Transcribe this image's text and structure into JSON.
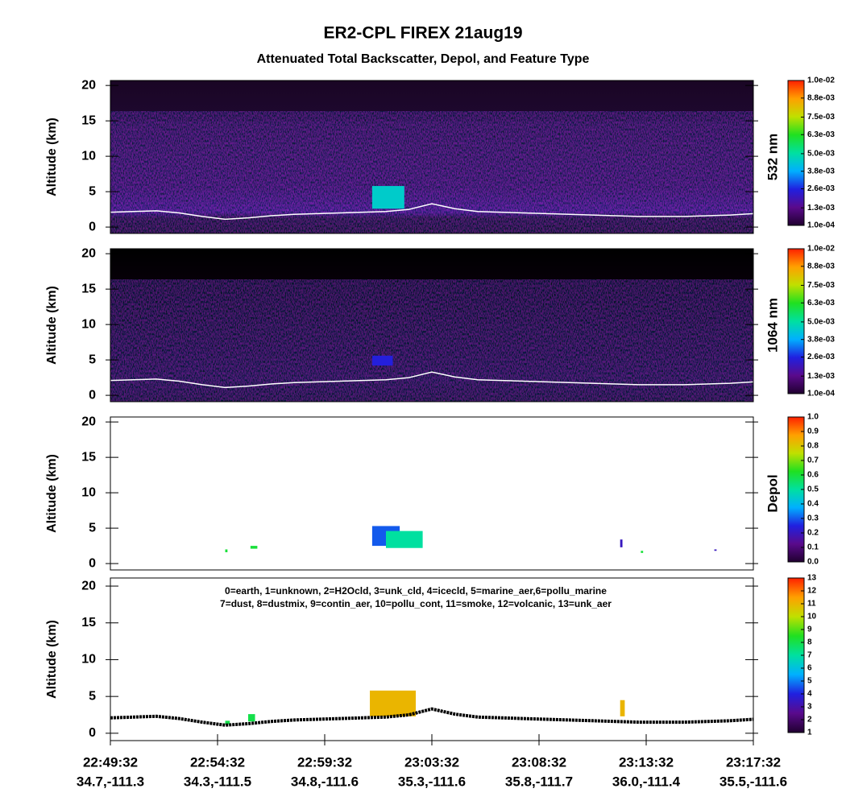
{
  "title": "ER2-CPL FIREX 21aug19",
  "subtitle": "Attenuated Total Backscatter, Depol, and Feature Type",
  "colormap": [
    "#200030",
    "#5a0a8c",
    "#2020e0",
    "#00b0ff",
    "#00e0a0",
    "#20e020",
    "#c0e000",
    "#ffa000",
    "#ff2000"
  ],
  "chart_data": [
    {
      "type": "curtain",
      "y_label": "Altitude (km)",
      "colorbar_label": "532 nm",
      "xlim": [
        0,
        28
      ],
      "ylim": [
        -0.9,
        20.7
      ],
      "yticks": [
        0,
        5,
        10,
        15,
        20
      ],
      "clim": [
        0.0001,
        0.01
      ],
      "cticks": [
        {
          "value": 0.0001,
          "label": "1.0e-04"
        },
        {
          "value": 0.0013,
          "label": "1.3e-03"
        },
        {
          "value": 0.0026,
          "label": "2.6e-03"
        },
        {
          "value": 0.0038,
          "label": "3.8e-03"
        },
        {
          "value": 0.005,
          "label": "5.0e-03"
        },
        {
          "value": 0.0063,
          "label": "6.3e-03"
        },
        {
          "value": 0.0075,
          "label": "7.5e-03"
        },
        {
          "value": 0.0088,
          "label": "8.8e-03"
        },
        {
          "value": 0.01,
          "label": "1.0e-02"
        }
      ],
      "surface": {
        "color": "#ffffff",
        "values": [
          2.1,
          2.2,
          2.3,
          2.0,
          1.5,
          1.1,
          1.3,
          1.6,
          1.8,
          1.9,
          2.0,
          2.1,
          2.2,
          2.5,
          3.3,
          2.6,
          2.2,
          2.1,
          2.0,
          1.9,
          1.8,
          1.7,
          1.6,
          1.5,
          1.5,
          1.5,
          1.6,
          1.7,
          1.9
        ]
      },
      "features": [
        {
          "x": [
            11.4,
            12.8
          ],
          "altitude": [
            2.6,
            5.8
          ],
          "value": 0.0045
        }
      ]
    },
    {
      "type": "curtain",
      "y_label": "Altitude (km)",
      "colorbar_label": "1064 nm",
      "xlim": [
        0,
        28
      ],
      "ylim": [
        -0.9,
        20.7
      ],
      "yticks": [
        0,
        5,
        10,
        15,
        20
      ],
      "clim": [
        0.0001,
        0.01
      ],
      "cticks": [
        {
          "value": 0.0001,
          "label": "1.0e-04"
        },
        {
          "value": 0.0013,
          "label": "1.3e-03"
        },
        {
          "value": 0.0026,
          "label": "2.6e-03"
        },
        {
          "value": 0.0038,
          "label": "3.8e-03"
        },
        {
          "value": 0.005,
          "label": "5.0e-03"
        },
        {
          "value": 0.0063,
          "label": "6.3e-03"
        },
        {
          "value": 0.0075,
          "label": "7.5e-03"
        },
        {
          "value": 0.0088,
          "label": "8.8e-03"
        },
        {
          "value": 0.01,
          "label": "1.0e-02"
        }
      ],
      "surface": {
        "color": "#ffffff",
        "values": [
          2.1,
          2.2,
          2.3,
          2.0,
          1.5,
          1.1,
          1.3,
          1.6,
          1.8,
          1.9,
          2.0,
          2.1,
          2.2,
          2.5,
          3.3,
          2.6,
          2.2,
          2.1,
          2.0,
          1.9,
          1.8,
          1.7,
          1.6,
          1.5,
          1.5,
          1.5,
          1.6,
          1.7,
          1.9
        ]
      },
      "features": [
        {
          "x": [
            11.4,
            12.3
          ],
          "altitude": [
            4.2,
            5.6
          ],
          "value": 0.0025
        }
      ]
    },
    {
      "type": "curtain",
      "y_label": "Altitude (km)",
      "colorbar_label": "Depol",
      "xlim": [
        0,
        28
      ],
      "ylim": [
        -0.9,
        20.7
      ],
      "yticks": [
        0,
        5,
        10,
        15,
        20
      ],
      "clim": [
        0,
        1
      ],
      "cticks": [
        {
          "value": 0,
          "label": "0.0"
        },
        0.1,
        0.2,
        0.3,
        0.4,
        0.5,
        0.6,
        0.7,
        0.8,
        0.9,
        {
          "value": 1,
          "label": "1.0"
        }
      ],
      "features": [
        {
          "x": [
            11.4,
            12.6
          ],
          "altitude": [
            2.5,
            5.3
          ],
          "value": 0.3
        },
        {
          "x": [
            12.0,
            13.6
          ],
          "altitude": [
            2.2,
            4.6
          ],
          "value": 0.5
        },
        {
          "x": [
            5.0,
            5.1
          ],
          "altitude": [
            1.6,
            2.0
          ],
          "value": 0.6
        },
        {
          "x": [
            6.1,
            6.4
          ],
          "altitude": [
            2.1,
            2.5
          ],
          "value": 0.6
        },
        {
          "x": [
            22.2,
            22.3
          ],
          "altitude": [
            2.3,
            3.4
          ],
          "value": 0.2
        },
        {
          "x": [
            23.1,
            23.2
          ],
          "altitude": [
            1.5,
            1.8
          ],
          "value": 0.6
        },
        {
          "x": [
            26.3,
            26.4
          ],
          "altitude": [
            1.8,
            2.0
          ],
          "value": 0.2
        }
      ]
    },
    {
      "type": "curtain",
      "y_label": "Altitude (km)",
      "xlim": [
        0,
        28
      ],
      "ylim": [
        -1,
        21.1
      ],
      "yticks": [
        0,
        5,
        10,
        15,
        20
      ],
      "clim": [
        1,
        13
      ],
      "cticks": [
        1,
        2,
        3,
        4,
        5,
        6,
        7,
        8,
        9,
        10,
        11,
        12,
        13
      ],
      "annotations": [
        "0=earth, 1=unknown, 2=H2Ocld, 3=unk_cld, 4=icecld, 5=marine_aer,6=pollu_marine",
        "7=dust, 8=dustmix, 9=contin_aer, 10=pollu_cont, 11=smoke, 12=volcanic, 13=unk_aer"
      ],
      "surface": {
        "color": "#000000",
        "values": [
          2.1,
          2.2,
          2.3,
          2.0,
          1.5,
          1.1,
          1.3,
          1.6,
          1.8,
          1.9,
          2.0,
          2.1,
          2.2,
          2.5,
          3.3,
          2.6,
          2.2,
          2.1,
          2.0,
          1.9,
          1.8,
          1.7,
          1.6,
          1.5,
          1.5,
          1.5,
          1.6,
          1.7,
          1.9
        ]
      },
      "features": [
        {
          "x": [
            11.3,
            13.3
          ],
          "altitude": [
            2.3,
            5.8
          ],
          "value": 11
        },
        {
          "x": [
            22.2,
            22.4
          ],
          "altitude": [
            2.3,
            4.5
          ],
          "value": 11
        },
        {
          "x": [
            5.0,
            5.2
          ],
          "altitude": [
            1.2,
            1.7
          ],
          "value": 8
        },
        {
          "x": [
            6.0,
            6.3
          ],
          "altitude": [
            1.6,
            2.6
          ],
          "value": 8
        }
      ],
      "x_ticks": [
        {
          "time": "22:49:32",
          "location": "34.7,-111.3"
        },
        {
          "time": "22:54:32",
          "location": "34.3,-111.5"
        },
        {
          "time": "22:59:32",
          "location": "34.8,-111.6"
        },
        {
          "time": "23:03:32",
          "location": "35.3,-111.6"
        },
        {
          "time": "23:08:32",
          "location": "35.8,-111.7"
        },
        {
          "time": "23:13:32",
          "location": "36.0,-111.4"
        },
        {
          "time": "23:17:32",
          "location": "35.5,-111.6"
        }
      ]
    }
  ]
}
